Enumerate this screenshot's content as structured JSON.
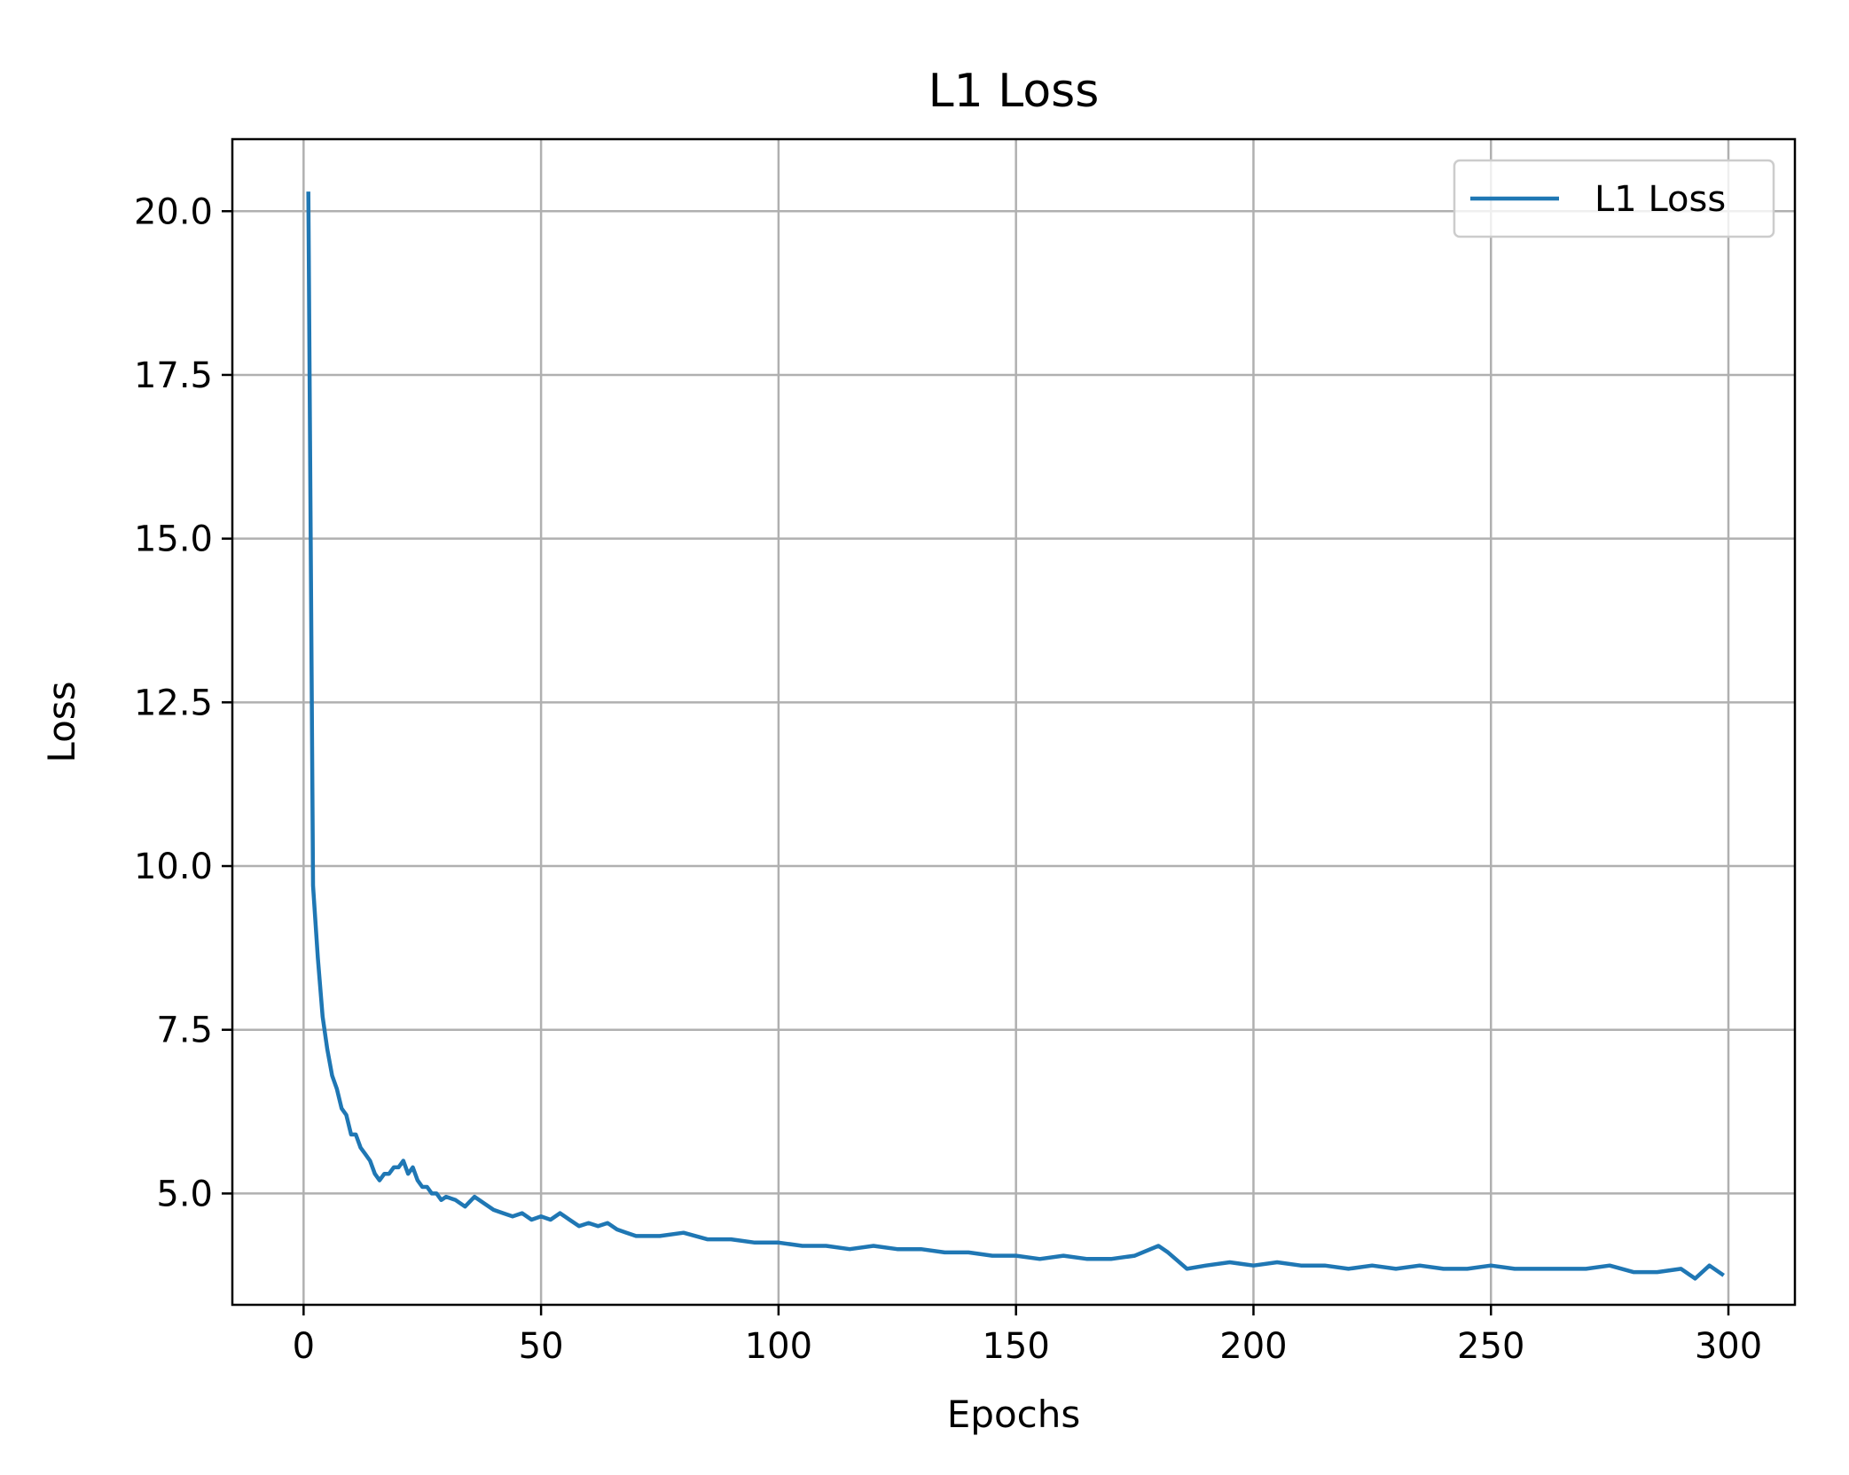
{
  "chart_data": {
    "type": "line",
    "title": "L1 Loss",
    "xlabel": "Epochs",
    "ylabel": "Loss",
    "xlim": [
      -15,
      314
    ],
    "ylim": [
      3.3,
      21.1
    ],
    "xticks": [
      0,
      50,
      100,
      150,
      200,
      250,
      300
    ],
    "xtick_labels": [
      "0",
      "50",
      "100",
      "150",
      "200",
      "250",
      "300"
    ],
    "yticks": [
      5.0,
      7.5,
      10.0,
      12.5,
      15.0,
      17.5,
      20.0
    ],
    "ytick_labels": [
      "5.0",
      "7.5",
      "10.0",
      "12.5",
      "15.0",
      "17.5",
      "20.0"
    ],
    "grid": true,
    "legend": {
      "position": "top-right",
      "entries": [
        "L1 Loss"
      ]
    },
    "series": [
      {
        "name": "L1 Loss",
        "color": "#1f77b4",
        "x": [
          1,
          2,
          3,
          4,
          5,
          6,
          7,
          8,
          9,
          10,
          11,
          12,
          13,
          14,
          15,
          16,
          17,
          18,
          19,
          20,
          21,
          22,
          23,
          24,
          25,
          26,
          27,
          28,
          29,
          30,
          32,
          34,
          36,
          38,
          40,
          42,
          44,
          46,
          48,
          50,
          52,
          54,
          56,
          58,
          60,
          62,
          64,
          66,
          68,
          70,
          75,
          80,
          85,
          90,
          95,
          100,
          105,
          110,
          115,
          120,
          125,
          130,
          135,
          140,
          145,
          150,
          155,
          160,
          165,
          170,
          175,
          180,
          182,
          186,
          190,
          195,
          200,
          205,
          210,
          215,
          220,
          225,
          230,
          235,
          240,
          245,
          250,
          255,
          260,
          265,
          270,
          275,
          280,
          285,
          290,
          293,
          296,
          299
        ],
        "y": [
          20.3,
          9.7,
          8.6,
          7.7,
          7.2,
          6.8,
          6.6,
          6.3,
          6.2,
          5.9,
          5.9,
          5.7,
          5.6,
          5.5,
          5.3,
          5.2,
          5.3,
          5.3,
          5.4,
          5.4,
          5.5,
          5.3,
          5.4,
          5.2,
          5.1,
          5.1,
          5.0,
          5.0,
          4.9,
          4.95,
          4.9,
          4.8,
          4.95,
          4.85,
          4.75,
          4.7,
          4.65,
          4.7,
          4.6,
          4.65,
          4.6,
          4.7,
          4.6,
          4.5,
          4.55,
          4.5,
          4.55,
          4.45,
          4.4,
          4.35,
          4.35,
          4.4,
          4.3,
          4.3,
          4.25,
          4.25,
          4.2,
          4.2,
          4.15,
          4.2,
          4.15,
          4.15,
          4.1,
          4.1,
          4.05,
          4.05,
          4.0,
          4.05,
          4.0,
          4.0,
          4.05,
          4.2,
          4.1,
          3.85,
          3.9,
          3.95,
          3.9,
          3.95,
          3.9,
          3.9,
          3.85,
          3.9,
          3.85,
          3.9,
          3.85,
          3.85,
          3.9,
          3.85,
          3.85,
          3.85,
          3.85,
          3.9,
          3.8,
          3.8,
          3.85,
          3.7,
          3.9,
          3.75
        ]
      }
    ]
  }
}
